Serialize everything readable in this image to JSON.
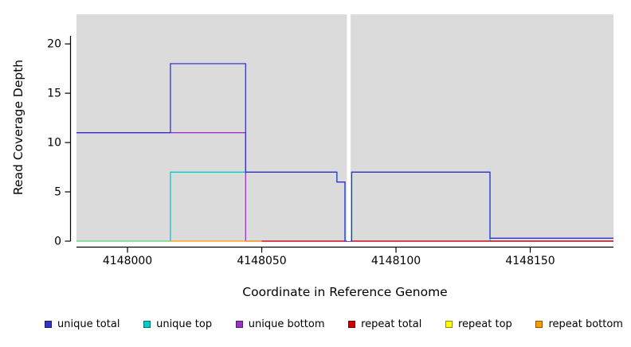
{
  "chart_data": {
    "type": "line",
    "subtype": "step-coverage-plot",
    "title": "",
    "xlabel": "Coordinate in Reference Genome",
    "ylabel": "Read Coverage Depth",
    "xlim": [
      4147981,
      4148181
    ],
    "ylim": [
      0,
      23
    ],
    "xticks": [
      4148000,
      4148050,
      4148100,
      4148150
    ],
    "yticks": [
      0,
      5,
      10,
      15,
      20
    ],
    "grid": false,
    "plot_background": "#dbdbdb",
    "gap_band": {
      "x_from": 4148081.7,
      "x_to": 4148083.1,
      "color": "#ffffff",
      "note": "white vertical gap in coverage near x=4148082"
    },
    "series": [
      {
        "name": "unique total",
        "color": "#3333cc",
        "points": [
          [
            4147981,
            11
          ],
          [
            4148016,
            11
          ],
          [
            4148016,
            18
          ],
          [
            4148044,
            18
          ],
          [
            4148044,
            7
          ],
          [
            4148078,
            7
          ],
          [
            4148078,
            6
          ],
          [
            4148081,
            6
          ],
          [
            4148081,
            0
          ],
          [
            4148083.5,
            0
          ],
          [
            4148083.5,
            7
          ],
          [
            4148135,
            7
          ],
          [
            4148135,
            0.3
          ],
          [
            4148181,
            0.3
          ]
        ]
      },
      {
        "name": "unique top",
        "color": "#00cdcd",
        "points": [
          [
            4147981,
            0
          ],
          [
            4148016,
            0
          ],
          [
            4148016,
            7
          ],
          [
            4148078,
            7
          ],
          [
            4148078,
            6
          ],
          [
            4148081,
            6
          ],
          [
            4148081,
            0
          ],
          [
            4148083.5,
            0
          ],
          [
            4148083.5,
            7
          ],
          [
            4148135,
            7
          ],
          [
            4148135,
            0
          ],
          [
            4148181,
            0
          ]
        ]
      },
      {
        "name": "unique bottom",
        "color": "#9932cc",
        "points": [
          [
            4147981,
            11
          ],
          [
            4148044,
            11
          ],
          [
            4148044,
            0
          ],
          [
            4148181,
            0
          ]
        ]
      },
      {
        "name": "repeat total",
        "color": "#cc0000",
        "points": [
          [
            4147981,
            0
          ],
          [
            4148181,
            0
          ]
        ]
      },
      {
        "name": "repeat top",
        "color": "#ffff00",
        "points": [
          [
            4147981,
            0
          ],
          [
            4148181,
            0
          ]
        ]
      },
      {
        "name": "repeat bottom",
        "color": "#ff9900",
        "points": [
          [
            4148016,
            0
          ],
          [
            4148050,
            0
          ]
        ]
      }
    ],
    "zero_line_visible_segments": [
      {
        "color": "#7fd47f",
        "x_from": 4147981,
        "x_to": 4148016
      },
      {
        "color": "#ff9900",
        "x_from": 4148016,
        "x_to": 4148050
      },
      {
        "color": "#cc0000",
        "x_from": 4148050,
        "x_to": 4148181
      }
    ],
    "legend": [
      {
        "label": "unique total",
        "color": "#3333cc"
      },
      {
        "label": "unique top",
        "color": "#00cdcd"
      },
      {
        "label": "unique bottom",
        "color": "#9932cc"
      },
      {
        "label": "repeat total",
        "color": "#cc0000"
      },
      {
        "label": "repeat top",
        "color": "#ffff00"
      },
      {
        "label": "repeat bottom",
        "color": "#ff9900"
      }
    ],
    "legend_position": "bottom"
  }
}
